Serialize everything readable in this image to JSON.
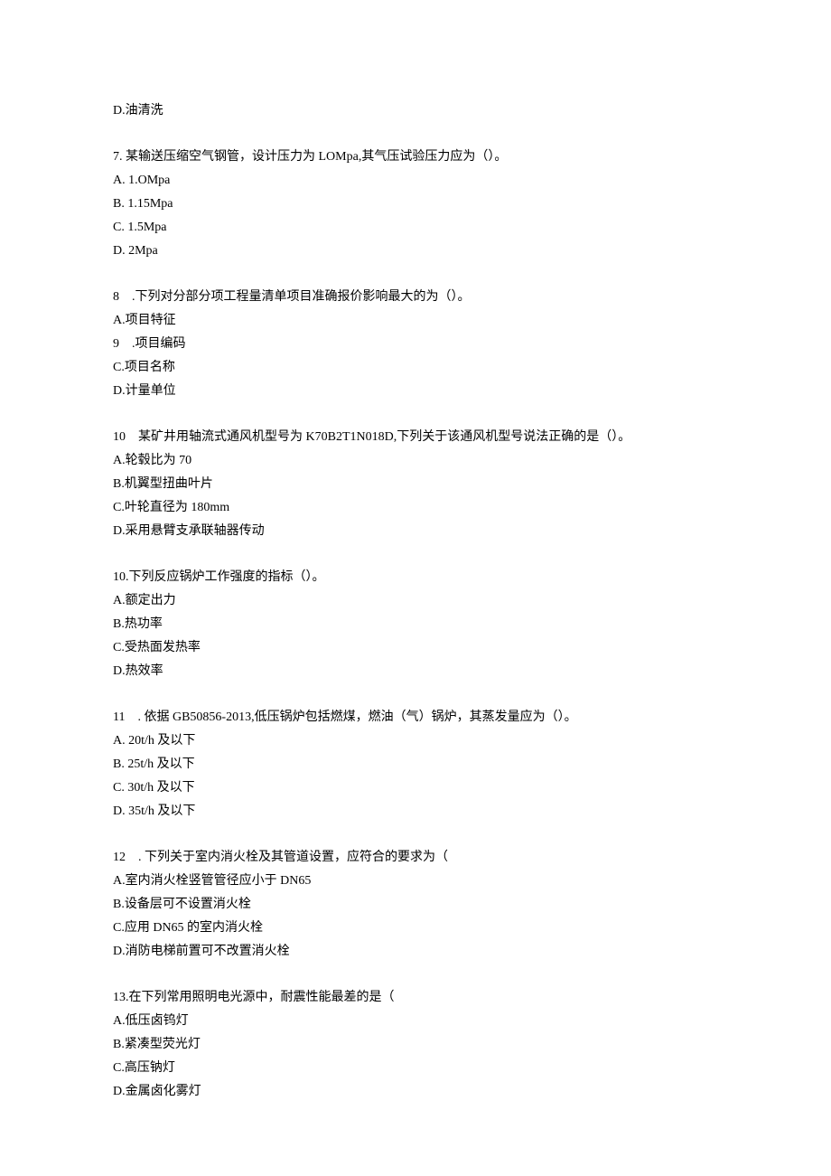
{
  "q6": {
    "opt_d": "D.油清洗"
  },
  "q7": {
    "stem": "7. 某输送压缩空气钢管，设计压力为 LOMpa,其气压试验压力应为（）。",
    "a": "A.   1.OMpa",
    "b": "B.   1.15Mpa",
    "c": "C.   1.5Mpa",
    "d": "D.   2Mpa"
  },
  "q8": {
    "stem": "8　.下列对分部分项工程量清单项目准确报价影响最大的为（）。",
    "a": "A.项目特征",
    "b": "9　.项目编码",
    "c": "C.项目名称",
    "d": "D.计量单位"
  },
  "q9": {
    "stem": "10　某矿井用轴流式通风机型号为 K70B2T1N018D,下列关于该通风机型号说法正确的是（）。",
    "a": "A.轮毂比为 70",
    "b": "B.机翼型扭曲叶片",
    "c": "C.叶轮直径为 180mm",
    "d": "D.采用悬臂支承联轴器传动"
  },
  "q10": {
    "stem": "10.下列反应锅炉工作强度的指标（）。",
    "a": "A.额定出力",
    "b": "B.热功率",
    "c": "C.受热面发热率",
    "d": "D.热效率"
  },
  "q11": {
    "stem": "11　. 依据 GB50856-2013,低压锅炉包括燃煤，燃油（气）锅炉，其蒸发量应为（）。",
    "a": "A.   20t/h 及以下",
    "b": "B.   25t/h 及以下",
    "c": "C.   30t/h 及以下",
    "d": "D.   35t/h 及以下"
  },
  "q12": {
    "stem": "12　. 下列关于室内消火栓及其管道设置，应符合的要求为（",
    "a": "A.室内消火栓竖管管径应小于 DN65",
    "b": "B.设备层可不设置消火栓",
    "c": "C.应用 DN65 的室内消火栓",
    "d": "D.消防电梯前置可不改置消火栓"
  },
  "q13": {
    "stem": "13.在下列常用照明电光源中，耐震性能最差的是（",
    "a": "A.低压卤钨灯",
    "b": "B.紧凑型荧光灯",
    "c": "C.高压钠灯",
    "d": "D.金属卤化雾灯"
  }
}
